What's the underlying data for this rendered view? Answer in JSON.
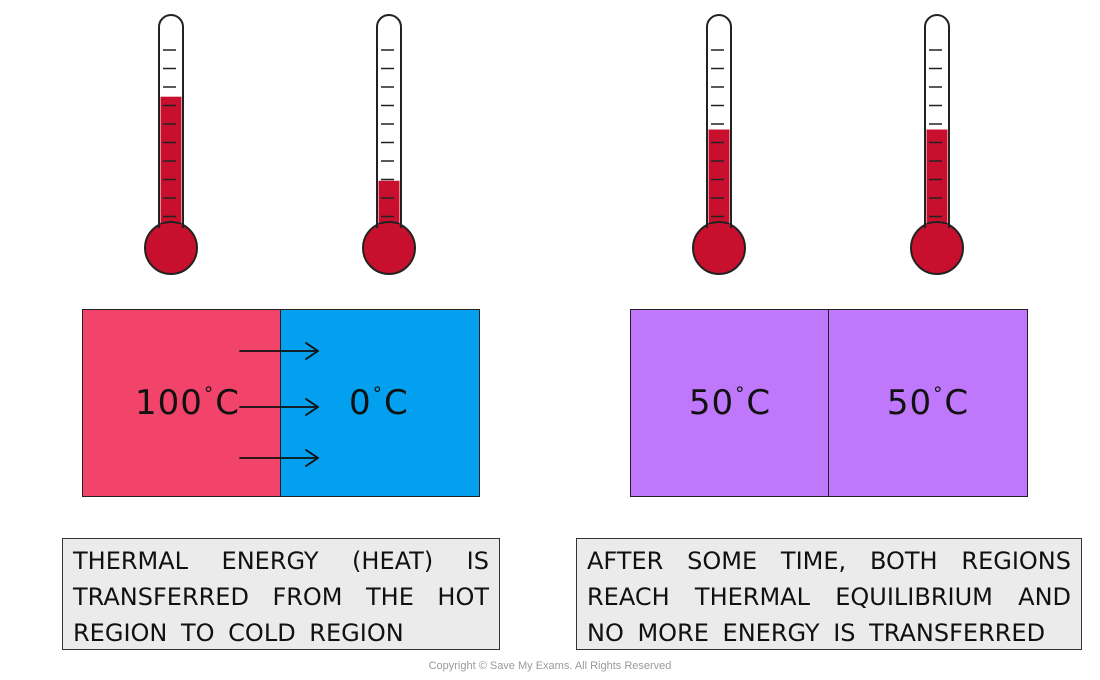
{
  "before": {
    "hot_region": {
      "temp_value": "100",
      "temp_unit": "C",
      "color": "#f2436a"
    },
    "cold_region": {
      "temp_value": "0",
      "temp_unit": "C",
      "color": "#03a0ef"
    },
    "caption": "THERMAL ENERGY (HEAT) IS TRANSFERRED FROM THE HOT REGION TO COLD REGION",
    "thermometers": [
      {
        "name": "hot",
        "fill_fraction": 0.66
      },
      {
        "name": "cold",
        "fill_fraction": 0.25
      }
    ]
  },
  "after": {
    "left_region": {
      "temp_value": "50",
      "temp_unit": "C",
      "color": "#bf78fc"
    },
    "right_region": {
      "temp_value": "50",
      "temp_unit": "C",
      "color": "#bf78fc"
    },
    "caption": "AFTER SOME TIME, BOTH REGIONS REACH THERMAL EQUILIBRIUM AND NO MORE ENERGY IS TRANSFERRED",
    "thermometers": [
      {
        "name": "left",
        "fill_fraction": 0.5
      },
      {
        "name": "right",
        "fill_fraction": 0.5
      }
    ]
  },
  "colors": {
    "mercury": "#c8102e",
    "outline": "#222222",
    "caption_bg": "#ebebeb"
  },
  "copyright": "Copyright © Save My Exams. All Rights Reserved"
}
